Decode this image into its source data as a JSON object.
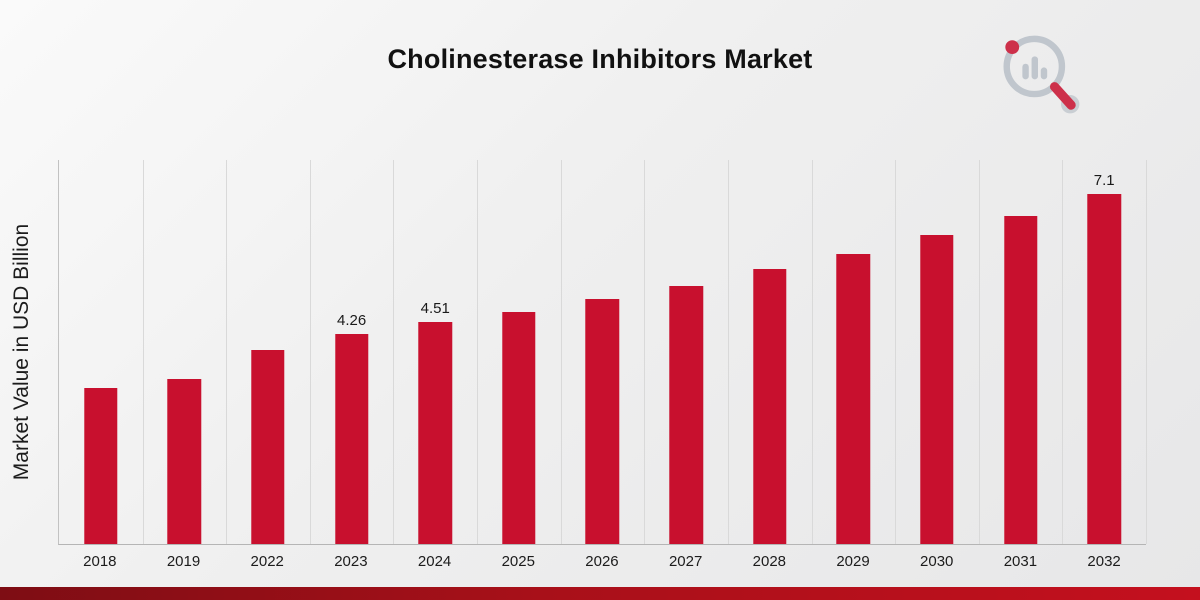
{
  "page": {
    "title": "Cholinesterase Inhibitors Market"
  },
  "chart_data": {
    "type": "bar",
    "title": "Cholinesterase Inhibitors Market",
    "xlabel": "",
    "ylabel": "Market Value in USD Billion",
    "ylim": [
      0,
      7.8
    ],
    "grid": "vertical-only",
    "legend": "none",
    "bar_color": "#c8102e",
    "categories": [
      "2018",
      "2019",
      "2022",
      "2023",
      "2024",
      "2025",
      "2026",
      "2027",
      "2028",
      "2029",
      "2030",
      "2031",
      "2032"
    ],
    "values": [
      3.17,
      3.35,
      3.95,
      4.26,
      4.51,
      4.72,
      4.98,
      5.25,
      5.58,
      5.9,
      6.28,
      6.66,
      7.1
    ],
    "shown_labels": {
      "2023": "4.26",
      "2024": "4.51",
      "2032": "7.1"
    }
  },
  "logo": {
    "icon": "bar-chart-magnifier-logo"
  },
  "colors": {
    "accent_red": "#c8102e",
    "footer_dark_red": "#7e0d14",
    "logo_gray": "#b9c0c8"
  }
}
